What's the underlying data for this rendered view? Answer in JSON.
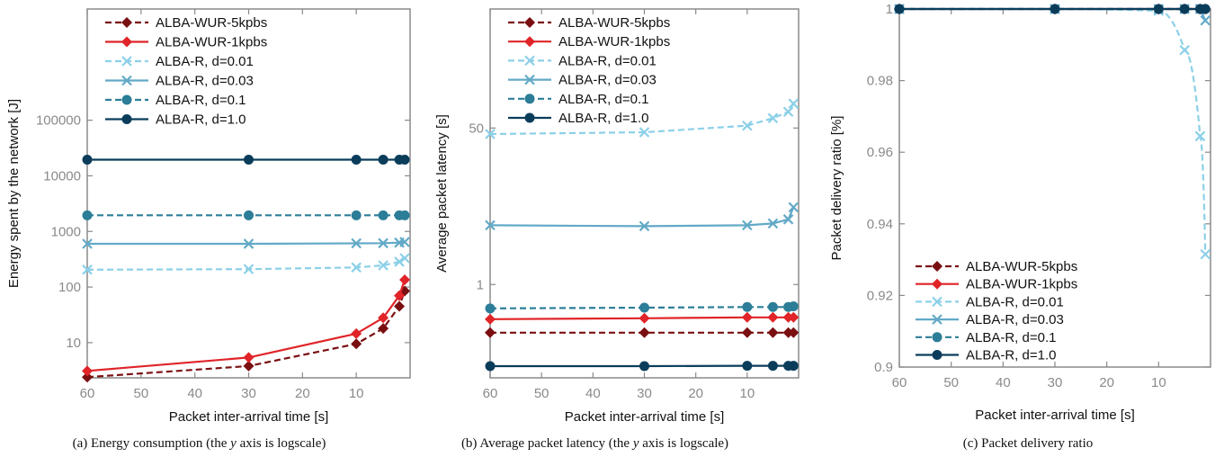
{
  "colors": {
    "wur5": "#7a0f11",
    "wur1": "#e02428",
    "r001": "#8cd0e8",
    "r003": "#62a9c7",
    "r01": "#2c7d97",
    "r10": "#0b3d5b",
    "axis": "#8a8a8a",
    "tick_text": "#8a8a8a",
    "label_text": "#111111"
  },
  "chart_data": [
    {
      "type": "line",
      "title": "",
      "caption_main": "(a) Energy consumption (the ",
      "caption_var": "y",
      "caption_tail": " axis is logscale)",
      "xlabel": "Packet inter-arrival time [s]",
      "ylabel": "Energy spent by the network [J]",
      "xlim": [
        60,
        0
      ],
      "ylim": [
        2.33,
        10000000
      ],
      "yscale": "log",
      "xticks": [
        60,
        50,
        40,
        30,
        20,
        10
      ],
      "yticks": [
        10,
        100,
        1000,
        10000,
        100000
      ],
      "ytick_labels": [
        "10",
        "100",
        "1000",
        "10000",
        "100000"
      ],
      "legend_position": "top-left",
      "x": [
        60,
        30,
        10,
        5,
        2,
        1
      ],
      "series": [
        {
          "name": "ALBA-WUR-5kpbs",
          "values": [
            2.4,
            3.8,
            9.5,
            18,
            45,
            85
          ],
          "dashed": true,
          "marker": "diamond",
          "color_key": "wur5"
        },
        {
          "name": "ALBA-WUR-1kpbs",
          "values": [
            3.1,
            5.4,
            14.5,
            28,
            70,
            135
          ],
          "dashed": false,
          "marker": "diamond",
          "color_key": "wur1"
        },
        {
          "name": "ALBA-R, d=0.01",
          "values": [
            205,
            210,
            225,
            245,
            285,
            330
          ],
          "dashed": true,
          "marker": "cross",
          "color_key": "r001"
        },
        {
          "name": "ALBA-R, d=0.03",
          "values": [
            600,
            600,
            610,
            615,
            630,
            645
          ],
          "dashed": false,
          "marker": "cross",
          "color_key": "r003"
        },
        {
          "name": "ALBA-R, d=0.1",
          "values": [
            1950,
            1950,
            1950,
            1950,
            1950,
            1950
          ],
          "dashed": true,
          "marker": "circle",
          "color_key": "r01"
        },
        {
          "name": "ALBA-R, d=1.0",
          "values": [
            19500,
            19500,
            19500,
            19500,
            19500,
            19500
          ],
          "dashed": false,
          "marker": "circle",
          "color_key": "r10"
        }
      ]
    },
    {
      "type": "line",
      "title": "",
      "caption_main": "(b) Average packet latency (the ",
      "caption_var": "y",
      "caption_tail": " axis is logscale)",
      "xlabel": "Packet inter-arrival time [s]",
      "ylabel": "Average packet latency [s]",
      "xlim": [
        60,
        0
      ],
      "ylim": [
        0.097,
        980
      ],
      "yscale": "log",
      "xticks": [
        60,
        50,
        40,
        30,
        20,
        10
      ],
      "yticks": [
        1,
        50
      ],
      "ytick_labels": [
        "1",
        "50"
      ],
      "legend_position": "top-left",
      "x": [
        60,
        30,
        10,
        5,
        2,
        1
      ],
      "series": [
        {
          "name": "ALBA-WUR-5kpbs",
          "values": [
            0.3,
            0.3,
            0.3,
            0.3,
            0.3,
            0.3
          ],
          "dashed": true,
          "marker": "diamond",
          "color_key": "wur5"
        },
        {
          "name": "ALBA-WUR-1kpbs",
          "values": [
            0.42,
            0.43,
            0.44,
            0.44,
            0.44,
            0.44
          ],
          "dashed": false,
          "marker": "diamond",
          "color_key": "wur1"
        },
        {
          "name": "ALBA-R, d=0.01",
          "values": [
            43,
            45,
            53,
            64,
            75,
            92
          ],
          "dashed": true,
          "marker": "cross",
          "color_key": "r001"
        },
        {
          "name": "ALBA-R, d=0.03",
          "values": [
            4.4,
            4.3,
            4.4,
            4.6,
            5.1,
            6.9
          ],
          "dashed": false,
          "marker": "cross",
          "color_key": "r003"
        },
        {
          "name": "ALBA-R, d=0.1",
          "values": [
            0.55,
            0.56,
            0.57,
            0.57,
            0.57,
            0.58
          ],
          "dashed": true,
          "marker": "circle",
          "color_key": "r01"
        },
        {
          "name": "ALBA-R, d=1.0",
          "values": [
            0.13,
            0.13,
            0.131,
            0.131,
            0.131,
            0.131
          ],
          "dashed": false,
          "marker": "circle",
          "color_key": "r10"
        }
      ]
    },
    {
      "type": "line",
      "title": "",
      "caption_main": "(c) Packet delivery ratio",
      "caption_var": "",
      "caption_tail": "",
      "xlabel": "Packet inter-arrival time [s]",
      "ylabel": "Packet delivery ratio [%]",
      "xlim": [
        60,
        0
      ],
      "ylim": [
        0.9,
        1.0
      ],
      "yscale": "linear",
      "xticks": [
        60,
        50,
        40,
        30,
        20,
        10
      ],
      "yticks": [
        0.9,
        0.92,
        0.94,
        0.96,
        0.98,
        1.0
      ],
      "ytick_labels": [
        "0.9",
        "0.92",
        "0.94",
        "0.96",
        "0.98",
        "1"
      ],
      "legend_position": "bottom-left",
      "x": [
        60,
        30,
        10,
        5,
        2,
        1
      ],
      "series": [
        {
          "name": "ALBA-WUR-5kpbs",
          "values": [
            1.0,
            1.0,
            1.0,
            1.0,
            1.0,
            1.0
          ],
          "dashed": true,
          "marker": "diamond",
          "color_key": "wur5"
        },
        {
          "name": "ALBA-WUR-1kpbs",
          "values": [
            1.0,
            1.0,
            1.0,
            1.0,
            1.0,
            1.0
          ],
          "dashed": false,
          "marker": "diamond",
          "color_key": "wur1"
        },
        {
          "name": "ALBA-R, d=0.01",
          "values": [
            1.0,
            1.0,
            0.9995,
            0.9885,
            0.9645,
            0.9315
          ],
          "dashed": true,
          "marker": "cross",
          "color_key": "r001"
        },
        {
          "name": "ALBA-R, d=0.03",
          "values": [
            1.0,
            1.0,
            1.0,
            1.0,
            1.0,
            0.9968
          ],
          "dashed": false,
          "marker": "cross",
          "color_key": "r003"
        },
        {
          "name": "ALBA-R, d=0.1",
          "values": [
            1.0,
            1.0,
            1.0,
            1.0,
            1.0,
            1.0
          ],
          "dashed": true,
          "marker": "circle",
          "color_key": "r01"
        },
        {
          "name": "ALBA-R, d=1.0",
          "values": [
            1.0,
            1.0,
            1.0,
            1.0,
            1.0,
            1.0
          ],
          "dashed": false,
          "marker": "circle",
          "color_key": "r10"
        }
      ]
    }
  ]
}
